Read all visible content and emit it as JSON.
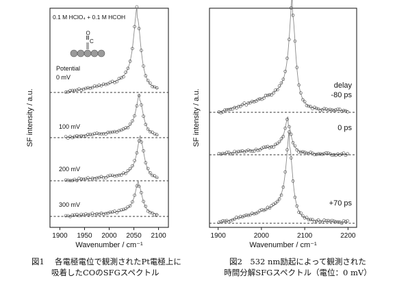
{
  "chart_data": [
    {
      "type": "scatter",
      "panel": "left",
      "condition_label": "0.1 M HClO₄ + 0.1 M HCOH",
      "inset_labels": {
        "molecule_o": "O",
        "molecule_c": "C"
      },
      "xlabel": "Wavenumber / cm⁻¹",
      "ylabel": "SF intensity / a.u.",
      "xlim": [
        1880,
        2120
      ],
      "xticks": [
        "1900",
        "1950",
        "2000",
        "2050",
        "2100"
      ],
      "legend_title": "Potential",
      "series": [
        {
          "name": "0 mV",
          "peak": 2057,
          "height": 1.0,
          "baseline_rise": 0.18
        },
        {
          "name": "100 mV",
          "peak": 2062,
          "height": 0.55,
          "baseline_rise": 0.12
        },
        {
          "name": "200 mV",
          "peak": 2064,
          "height": 0.58,
          "baseline_rise": 0.1
        },
        {
          "name": "300 mV",
          "peak": 2060,
          "height": 0.45,
          "baseline_rise": 0.08
        }
      ]
    },
    {
      "type": "scatter",
      "panel": "right",
      "xlabel": "Wavenumber / cm⁻¹",
      "ylabel": "SF intensity / a.u.",
      "xlim": [
        1880,
        2220
      ],
      "xticks": [
        "1900",
        "2000",
        "2100",
        "2200"
      ],
      "series": [
        {
          "name": "delay\n-80 ps",
          "peak": 2072,
          "height": 1.0,
          "baseline_rise": 0.25
        },
        {
          "name": "0 ps",
          "peak": 2062,
          "height": 0.6,
          "baseline_rise": 0.2
        },
        {
          "name": "+70 ps",
          "peak": 2065,
          "height": 0.85,
          "baseline_rise": 0.22
        }
      ]
    }
  ],
  "captions": {
    "fig1_line1": "図1　 各電極電位で観測されたPt電極上に",
    "fig1_line2": "吸着したCOのSFGスペクトル",
    "fig2_line1": "図2　532 nm励起によって観測された",
    "fig2_line2": "時間分解SFGスペクトル（電位：0 mV）"
  }
}
